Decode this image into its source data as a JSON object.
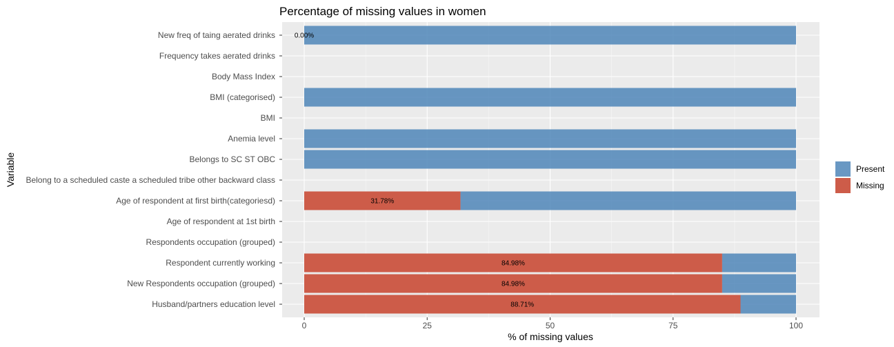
{
  "chart_data": {
    "type": "bar",
    "orientation": "horizontal",
    "stacked": true,
    "title": "Percentage of missing values in women",
    "xlabel": "% of missing values",
    "ylabel": "Variable",
    "xlim": [
      0,
      100
    ],
    "x_ticks": [
      "0",
      "25",
      "50",
      "75",
      "100"
    ],
    "grid": true,
    "legend_position": "right",
    "categories": [
      "New freq of taing aerated drinks",
      "Frequency takes aerated drinks",
      "Body Mass Index",
      "BMI (categorised)",
      "BMI",
      "Anemia level",
      "Belongs to SC ST OBC",
      "Belong to a scheduled caste a scheduled tribe other backward class",
      "Age of respondent at first birth(categoriesd)",
      "Age of respondent at 1st birth",
      "Respondents occupation (grouped)",
      "Respondent currently working",
      "New Respondents occupation (grouped)",
      "Husband/partners education level"
    ],
    "series": [
      {
        "name": "Missing",
        "color": "#cd5c49",
        "values": [
          0,
          null,
          null,
          0,
          null,
          0,
          0,
          null,
          31.78,
          null,
          null,
          84.98,
          84.98,
          88.71
        ],
        "labels": [
          "0.00%",
          "",
          "",
          "",
          "",
          "",
          "",
          "",
          "31.78%",
          "",
          "",
          "84.98%",
          "84.98%",
          "88.71%"
        ]
      },
      {
        "name": "Present",
        "color": "#4f86b9",
        "values": [
          100,
          null,
          null,
          100,
          null,
          100,
          100,
          null,
          68.22,
          null,
          null,
          15.02,
          15.02,
          11.29
        ]
      }
    ],
    "legend": [
      "Present",
      "Missing"
    ]
  }
}
